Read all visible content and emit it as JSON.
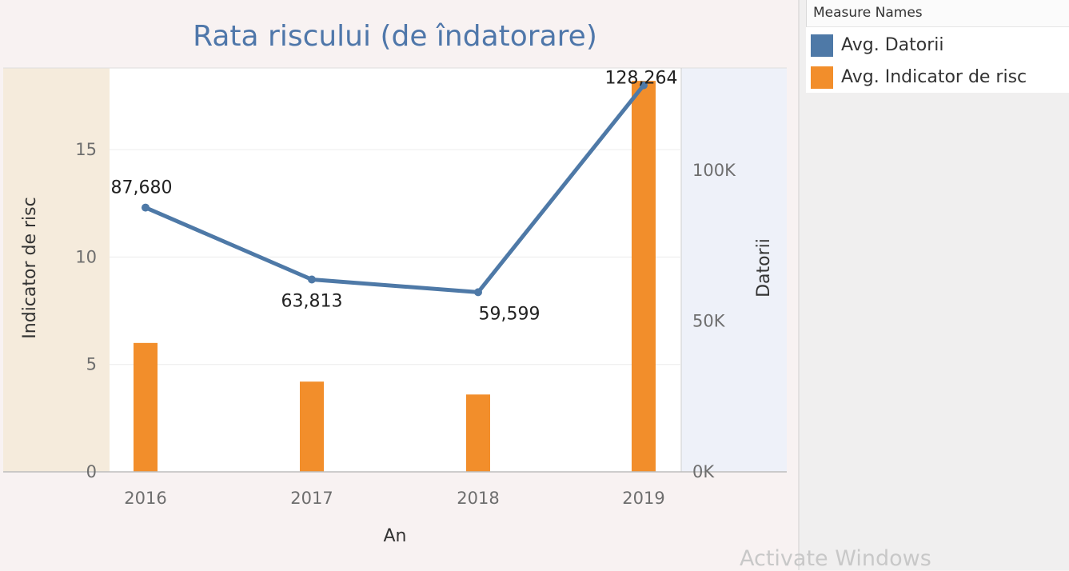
{
  "chart_data": {
    "type": "bar",
    "title": "Rata riscului (de îndatorare)",
    "xlabel": "An",
    "ylabel": "Indicator de risc",
    "y2label": "Datorii",
    "categories": [
      "2016",
      "2017",
      "2018",
      "2019"
    ],
    "ylim": [
      0,
      18.8
    ],
    "y2lim": [
      0,
      134000
    ],
    "yticks": [
      0,
      5,
      10,
      15
    ],
    "yticklabels": [
      "0",
      "5",
      "10",
      "15"
    ],
    "y2ticks": [
      0,
      50000,
      100000
    ],
    "y2ticklabels": [
      "0K",
      "50K",
      "100K"
    ],
    "grid": true,
    "legend_position": "right",
    "legend_title": "Measure Names",
    "series": [
      {
        "name": "Avg. Datorii",
        "type": "line",
        "axis": "right",
        "color": "#4e79a7",
        "values": [
          87680,
          63813,
          59599,
          128264
        ],
        "labels": [
          "87,680",
          "63,813",
          "59,599",
          "128,264"
        ]
      },
      {
        "name": "Avg. Indicator de risc",
        "type": "bar",
        "axis": "left",
        "color": "#f28e2b",
        "values": [
          6.0,
          4.2,
          3.6,
          18.2
        ]
      }
    ]
  },
  "colors": {
    "left_axis_bg": "#f5ebdc",
    "right_axis_bg": "#eef1f9",
    "plot_bg": "#ffffff",
    "title": "#4f77aa"
  },
  "watermark": "Activate Windows"
}
